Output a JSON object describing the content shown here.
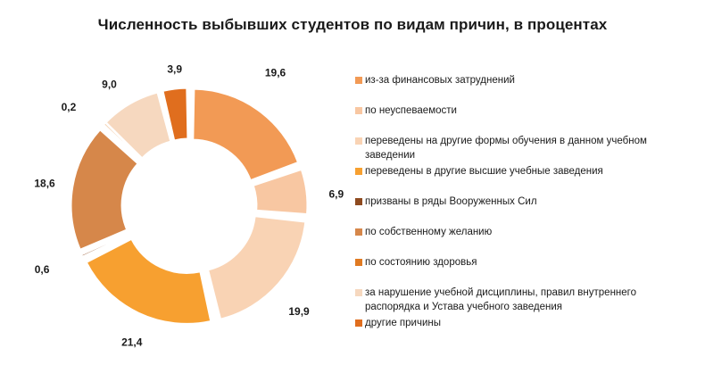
{
  "title": "Численность выбывших студентов по видам причин, в процентах",
  "chart_data": {
    "type": "pie",
    "title": "Численность выбывших студентов по видам причин, в процентах",
    "legend_position": "right",
    "series": [
      {
        "name": "из-за финансовых затруднений",
        "value": 19.6,
        "label": "19,6",
        "color": "#F29A55"
      },
      {
        "name": "по неуспеваемости",
        "value": 6.9,
        "label": "6,9",
        "color": "#F8C7A2"
      },
      {
        "name": "переведены на другие формы обучения в данном учебном заведении",
        "value": 19.9,
        "label": "19,9",
        "color": "#F9D3B4"
      },
      {
        "name": "переведены в другие высшие учебные заведения",
        "value": 21.4,
        "label": "21,4",
        "color": "#F7A030"
      },
      {
        "name": "призваны в ряды Вооруженных Сил",
        "value": 0.6,
        "label": "0,6",
        "color": "#8E4A1F"
      },
      {
        "name": "по собственному желанию",
        "value": 18.6,
        "label": "18,6",
        "color": "#D6874A"
      },
      {
        "name": "по состоянию здоровья",
        "value": 0.2,
        "label": "0,2",
        "color": "#E07A22"
      },
      {
        "name": "за нарушение учебной дисциплины, правил внутреннего распорядка и Устава учебного заведения",
        "value": 9.0,
        "label": "9,0",
        "color": "#F6D8BF"
      },
      {
        "name": "другие причины",
        "value": 3.9,
        "label": "3,9",
        "color": "#E06E1E"
      }
    ]
  }
}
